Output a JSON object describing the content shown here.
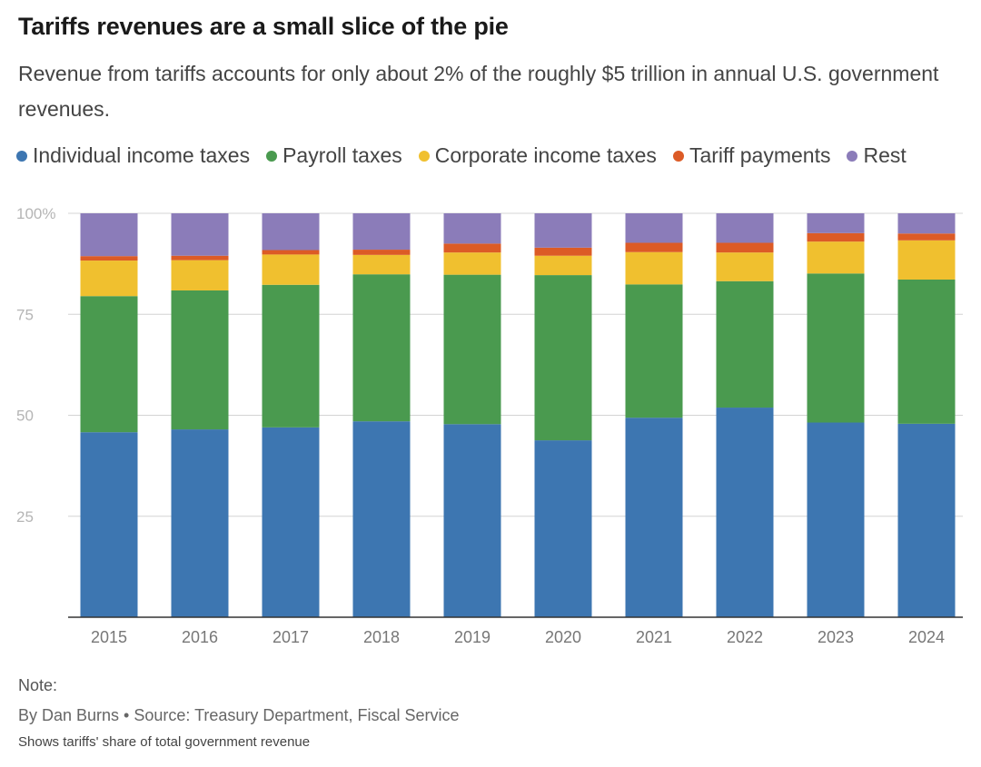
{
  "title": "Tariffs revenues are a small slice of the pie",
  "subtitle": "Revenue from tariffs accounts for only about 2% of the roughly $5 trillion in annual U.S. government revenues.",
  "note_label": "Note:",
  "byline": "By Dan Burns • Source: Treasury Department, Fiscal Service",
  "footnote": "Shows tariffs' share of total government revenue",
  "colors": {
    "Individual income taxes": "#3d76b1",
    "Payroll taxes": "#4a9a4f",
    "Corporate income taxes": "#f0c02f",
    "Tariff payments": "#dc5b26",
    "Rest": "#8b7cb9"
  },
  "chart_data": {
    "type": "bar",
    "stacked": true,
    "categories": [
      "2015",
      "2016",
      "2017",
      "2018",
      "2019",
      "2020",
      "2021",
      "2022",
      "2023",
      "2024"
    ],
    "ylim": [
      0,
      100
    ],
    "yticks": [
      0,
      25,
      50,
      75,
      100
    ],
    "ytick_labels": [
      "",
      "25",
      "50",
      "75",
      "100%"
    ],
    "grid": true,
    "legend_position": "top",
    "series": [
      {
        "name": "Individual income taxes",
        "values": [
          45.8,
          46.5,
          47.0,
          48.5,
          47.8,
          43.8,
          49.4,
          51.9,
          48.2,
          47.9
        ]
      },
      {
        "name": "Payroll taxes",
        "values": [
          33.7,
          34.4,
          35.3,
          36.4,
          37.0,
          40.9,
          33.0,
          31.3,
          36.9,
          35.7
        ]
      },
      {
        "name": "Corporate income taxes",
        "values": [
          8.8,
          7.5,
          7.5,
          4.8,
          5.5,
          4.8,
          8.0,
          7.1,
          7.9,
          9.7
        ]
      },
      {
        "name": "Tariff payments",
        "values": [
          1.1,
          1.1,
          1.1,
          1.3,
          2.2,
          2.0,
          2.3,
          2.4,
          2.1,
          1.7
        ]
      },
      {
        "name": "Rest",
        "values": [
          10.6,
          10.5,
          9.1,
          9.0,
          7.5,
          8.5,
          7.3,
          7.3,
          4.9,
          5.0
        ]
      }
    ]
  }
}
